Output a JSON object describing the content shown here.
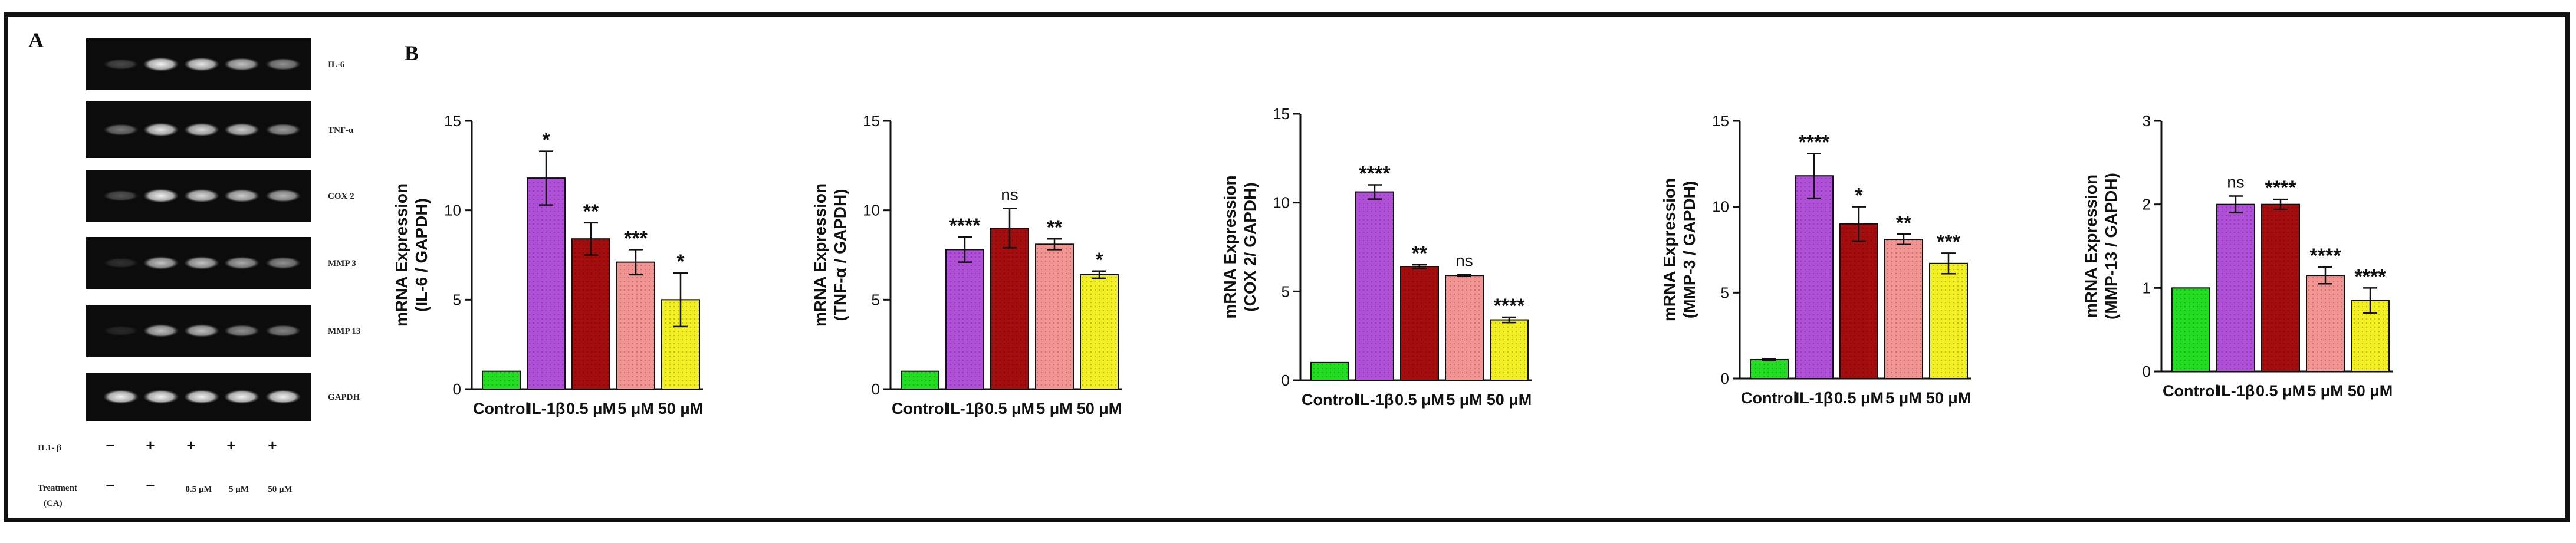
{
  "panel_a": {
    "letter": "A",
    "gel_bands": [
      {
        "label": "IL-6",
        "intensities": [
          0.25,
          0.95,
          0.9,
          0.75,
          0.55
        ]
      },
      {
        "label": "TNF-α",
        "intensities": [
          0.45,
          0.9,
          0.85,
          0.8,
          0.6
        ]
      },
      {
        "label": "COX 2",
        "intensities": [
          0.3,
          0.95,
          0.85,
          0.8,
          0.7
        ]
      },
      {
        "label": "MMP 3",
        "intensities": [
          0.15,
          0.75,
          0.75,
          0.65,
          0.55
        ]
      },
      {
        "label": "MMP 13",
        "intensities": [
          0.12,
          0.75,
          0.75,
          0.55,
          0.5
        ]
      },
      {
        "label": "GAPDH",
        "intensities": [
          0.95,
          0.95,
          0.95,
          0.95,
          0.95
        ]
      }
    ],
    "treatment_rows": [
      {
        "label": "IL1- β",
        "label_line2": "",
        "cells": [
          "−",
          "+",
          "+",
          "+",
          "+"
        ]
      },
      {
        "label": "Treatment",
        "label_line2": "(CA)",
        "cells": [
          "−",
          "−",
          "0.5 μM",
          "5 μM",
          "50 μM"
        ]
      }
    ]
  },
  "panel_b": {
    "letter": "B"
  },
  "colors": {
    "control": "#22dd22",
    "il1b": "#b04fd8",
    "c05": "#a40d0d",
    "c5": "#f29592",
    "c50": "#f2ef22"
  },
  "chart_data": [
    {
      "type": "bar",
      "ylabel_line1": "mRNA Expression",
      "ylabel_line2": "(IL-6 / GAPDH)",
      "categories": [
        "Control",
        "IL-1β",
        "0.5 μM",
        "5 μM",
        "50 μM"
      ],
      "values": [
        1.0,
        11.8,
        8.4,
        7.1,
        5.0
      ],
      "errors": [
        0,
        1.5,
        0.9,
        0.7,
        1.5
      ],
      "significance": [
        "",
        "*",
        "**",
        "***",
        "*"
      ],
      "ylim": [
        0,
        15
      ],
      "yticks": [
        0,
        5,
        10,
        15
      ]
    },
    {
      "type": "bar",
      "ylabel_line1": "mRNA Expression",
      "ylabel_line2": "(TNF-α / GAPDH)",
      "categories": [
        "Control",
        "IL-1β",
        "0.5 μM",
        "5 μM",
        "50 μM"
      ],
      "values": [
        1.0,
        7.8,
        9.0,
        8.1,
        6.4
      ],
      "errors": [
        0,
        0.7,
        1.1,
        0.3,
        0.2
      ],
      "significance": [
        "",
        "****",
        "ns",
        "**",
        "*"
      ],
      "ylim": [
        0,
        15
      ],
      "yticks": [
        0,
        5,
        10,
        15
      ]
    },
    {
      "type": "bar",
      "ylabel_line1": "mRNA Expression",
      "ylabel_line2": "(COX 2/ GAPDH)",
      "categories": [
        "Control",
        "IL-1β",
        "0.5 μM",
        "5 μM",
        "50 μM"
      ],
      "values": [
        1.0,
        10.6,
        6.4,
        5.9,
        3.4
      ],
      "errors": [
        0,
        0.4,
        0.1,
        0.05,
        0.15
      ],
      "significance": [
        "",
        "****",
        "**",
        "ns",
        "****"
      ],
      "ylim": [
        0,
        15
      ],
      "yticks": [
        0,
        5,
        10,
        15
      ]
    },
    {
      "type": "bar",
      "ylabel_line1": "mRNA Expression",
      "ylabel_line2": "(MMP-3 / GAPDH)",
      "categories": [
        "Control",
        "IL-1β",
        "0.5 μM",
        "5 μM",
        "50 μM"
      ],
      "values": [
        1.1,
        11.8,
        9.0,
        8.1,
        6.7
      ],
      "errors": [
        0.05,
        1.3,
        1.0,
        0.3,
        0.6
      ],
      "significance": [
        "",
        "****",
        "*",
        "**",
        "***"
      ],
      "ylim": [
        0,
        15
      ],
      "yticks": [
        0,
        5,
        10,
        15
      ]
    },
    {
      "type": "bar",
      "ylabel_line1": "mRNA Expression",
      "ylabel_line2": "(MMP-13 / GAPDH)",
      "categories": [
        "Control",
        "IL-1β",
        "0.5 μM",
        "5 μM",
        "50 μM"
      ],
      "values": [
        1.0,
        2.0,
        2.0,
        1.15,
        0.85
      ],
      "errors": [
        0,
        0.1,
        0.06,
        0.1,
        0.15
      ],
      "significance": [
        "",
        "ns",
        "****",
        "****",
        "****"
      ],
      "ylim": [
        0,
        3
      ],
      "yticks": [
        0,
        1,
        2,
        3
      ]
    }
  ]
}
